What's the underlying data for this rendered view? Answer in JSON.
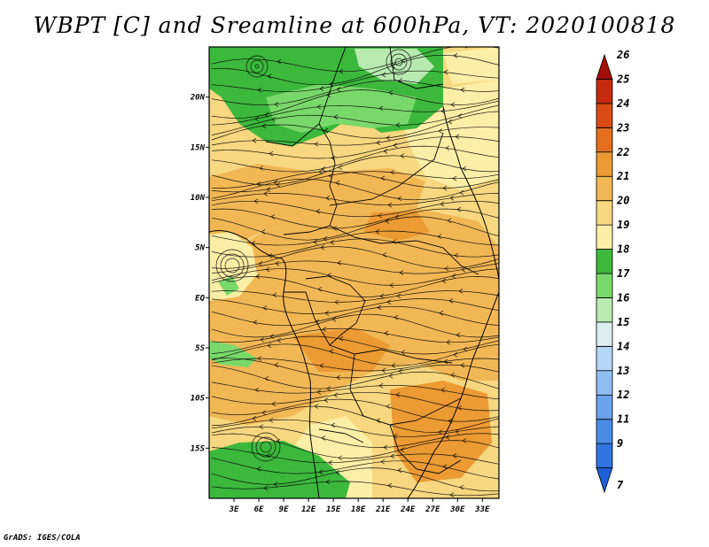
{
  "title": "WBPT [C] and Sreamline at 600hPa, VT: 2020100818",
  "credit": "GrADS: IGES/COLA",
  "map": {
    "lat_ticks": [
      "20N",
      "15N",
      "10N",
      "5N",
      "EQ",
      "5S",
      "10S",
      "15S"
    ],
    "lat_values": [
      20,
      15,
      10,
      5,
      0,
      -5,
      -10,
      -15
    ],
    "lon_ticks": [
      "3E",
      "6E",
      "9E",
      "12E",
      "15E",
      "18E",
      "21E",
      "24E",
      "27E",
      "30E",
      "33E"
    ],
    "lon_values": [
      3,
      6,
      9,
      12,
      15,
      18,
      21,
      24,
      27,
      30,
      33
    ],
    "lon_range": [
      0,
      35
    ],
    "lat_range": [
      -20,
      25
    ]
  },
  "colorbar": {
    "labels": [
      "7",
      "9",
      "11",
      "12",
      "13",
      "14",
      "15",
      "16",
      "17",
      "18",
      "19",
      "20",
      "21",
      "22",
      "23",
      "24",
      "25",
      "26"
    ],
    "colors": [
      "#1f5fd6",
      "#2f74e0",
      "#4a8be6",
      "#6aa3ec",
      "#8fbef2",
      "#b4d6f7",
      "#dcefee",
      "#b8eab0",
      "#79d86a",
      "#3cb83c",
      "#fbeea6",
      "#f7d77f",
      "#f2b755",
      "#ec9a34",
      "#e46f1e",
      "#da4a14",
      "#c42a0e",
      "#a20e08"
    ]
  }
}
